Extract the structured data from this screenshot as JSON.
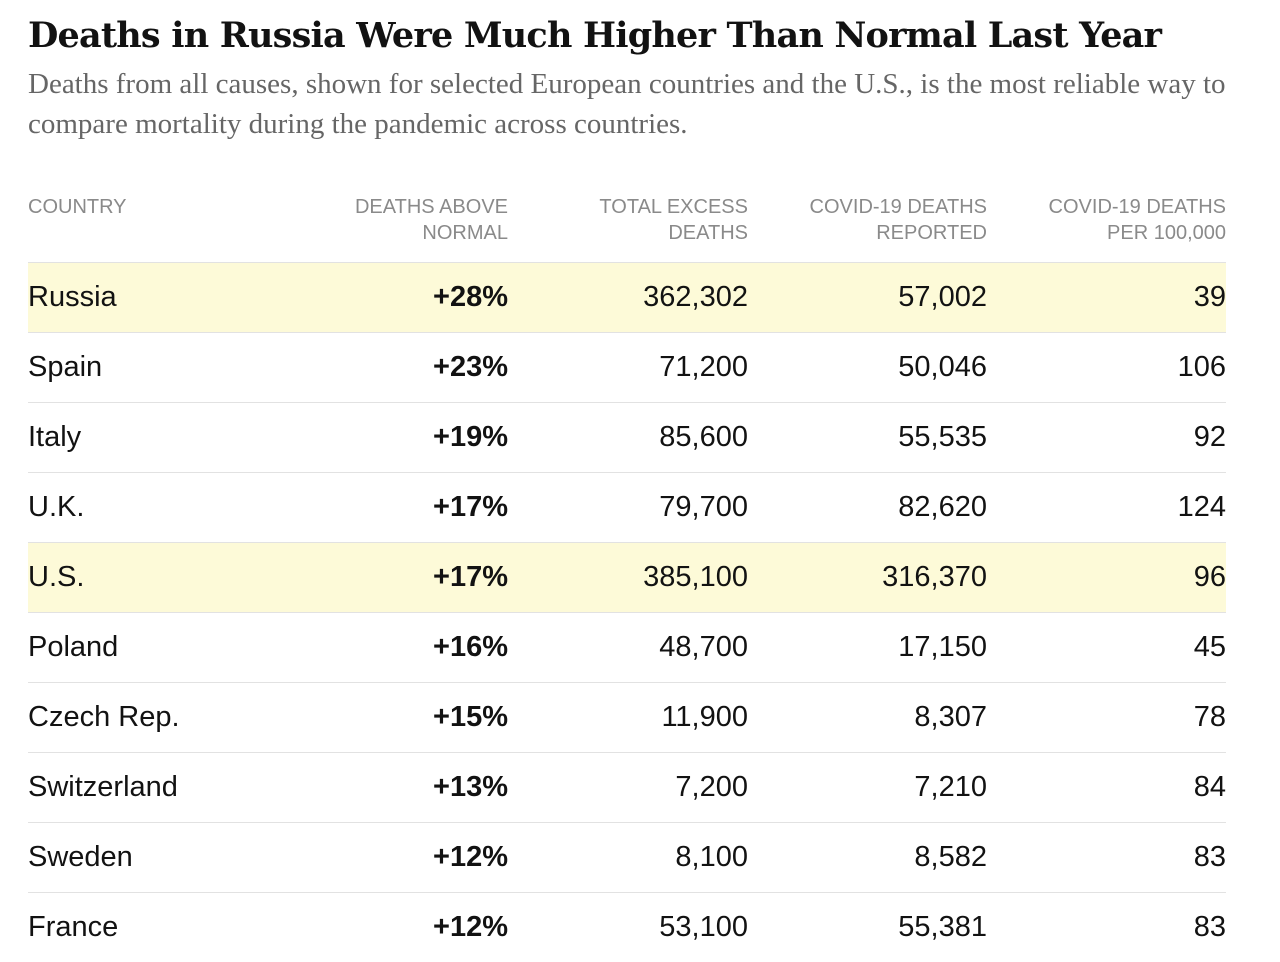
{
  "title": "Deaths in Russia Were Much Higher Than Normal Last Year",
  "subtitle": "Deaths from all causes, shown for selected European countries and the U.S., is the most reliable way to compare mortality during the pandemic across countries.",
  "colors": {
    "highlight_row": "#fdfad8",
    "header_text": "#8a8a8a",
    "subtitle_text": "#666666",
    "body_text": "#121212",
    "divider": "#e2e2e2"
  },
  "chart_data": {
    "type": "table",
    "title": "Deaths in Russia Were Much Higher Than Normal Last Year",
    "subtitle": "Deaths from all causes, shown for selected European countries and the U.S., is the most reliable way to compare mortality during the pandemic across countries.",
    "columns": [
      [
        "COUNTRY"
      ],
      [
        "DEATHS ABOVE",
        "NORMAL"
      ],
      [
        "TOTAL EXCESS",
        "DEATHS"
      ],
      [
        "COVID-19 DEATHS",
        "REPORTED"
      ],
      [
        "COVID-19 DEATHS",
        "PER 100,000"
      ]
    ],
    "rows": [
      {
        "country": "Russia",
        "above_normal": "+28%",
        "excess": "362,302",
        "covid_reported": "57,002",
        "per_100k": "39",
        "highlight": true
      },
      {
        "country": "Spain",
        "above_normal": "+23%",
        "excess": "71,200",
        "covid_reported": "50,046",
        "per_100k": "106",
        "highlight": false
      },
      {
        "country": "Italy",
        "above_normal": "+19%",
        "excess": "85,600",
        "covid_reported": "55,535",
        "per_100k": "92",
        "highlight": false
      },
      {
        "country": "U.K.",
        "above_normal": "+17%",
        "excess": "79,700",
        "covid_reported": "82,620",
        "per_100k": "124",
        "highlight": false
      },
      {
        "country": "U.S.",
        "above_normal": "+17%",
        "excess": "385,100",
        "covid_reported": "316,370",
        "per_100k": "96",
        "highlight": true
      },
      {
        "country": "Poland",
        "above_normal": "+16%",
        "excess": "48,700",
        "covid_reported": "17,150",
        "per_100k": "45",
        "highlight": false
      },
      {
        "country": "Czech Rep.",
        "above_normal": "+15%",
        "excess": "11,900",
        "covid_reported": "8,307",
        "per_100k": "78",
        "highlight": false
      },
      {
        "country": "Switzerland",
        "above_normal": "+13%",
        "excess": "7,200",
        "covid_reported": "7,210",
        "per_100k": "84",
        "highlight": false
      },
      {
        "country": "Sweden",
        "above_normal": "+12%",
        "excess": "8,100",
        "covid_reported": "8,582",
        "per_100k": "83",
        "highlight": false
      },
      {
        "country": "France",
        "above_normal": "+12%",
        "excess": "53,100",
        "covid_reported": "55,381",
        "per_100k": "83",
        "highlight": false
      }
    ]
  }
}
